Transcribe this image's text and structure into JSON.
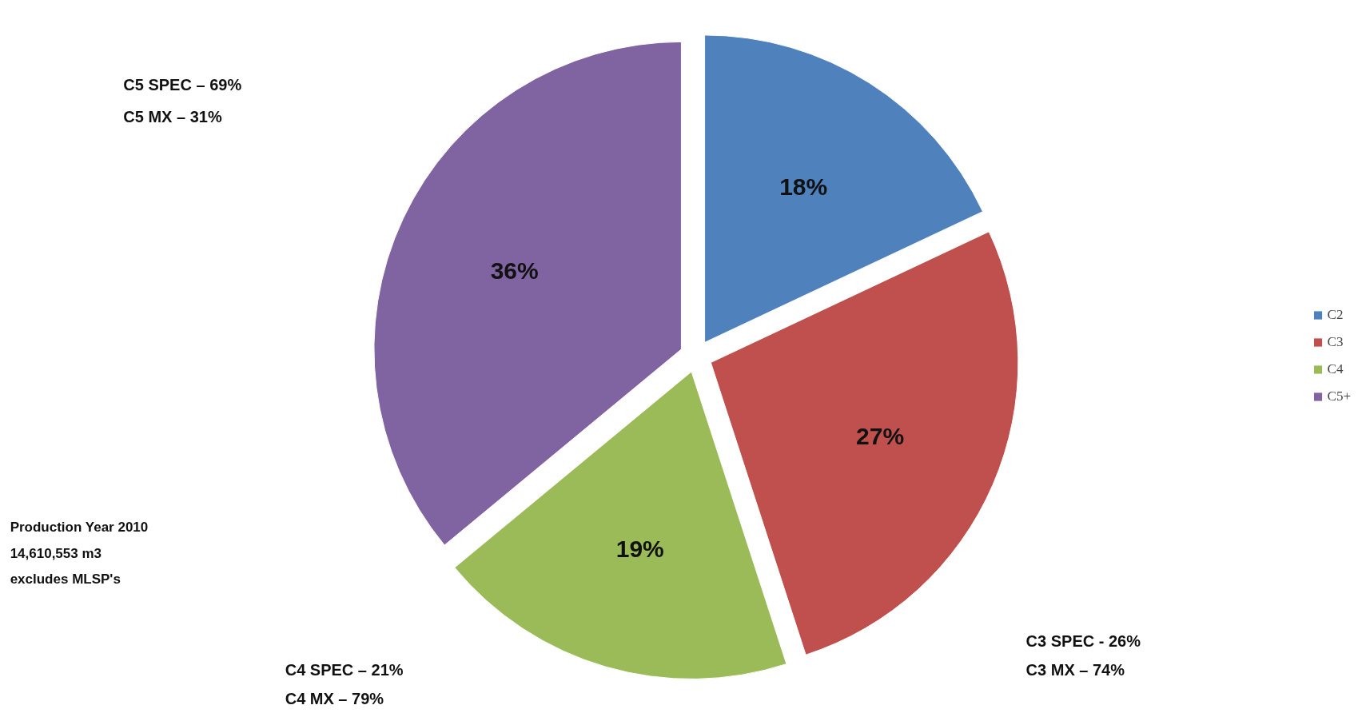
{
  "chart_data": {
    "type": "pie",
    "categories": [
      "C2",
      "C3",
      "C4",
      "C5+"
    ],
    "values": [
      18,
      27,
      19,
      36
    ],
    "colors": [
      "#4f81bd",
      "#c0504d",
      "#9bbb59",
      "#8064a2"
    ],
    "value_labels": [
      "18%",
      "27%",
      "19%",
      "36%"
    ],
    "legend": "right",
    "annotations": [
      "C5 SPEC – 69%",
      "C5 MX – 31%",
      "Production Year 2010",
      "14,610,553 m3",
      "excludes MLSP's",
      "C4 SPEC – 21%",
      "C4 MX – 79%",
      "C3 SPEC -  26%",
      "C3 MX – 74%"
    ]
  }
}
